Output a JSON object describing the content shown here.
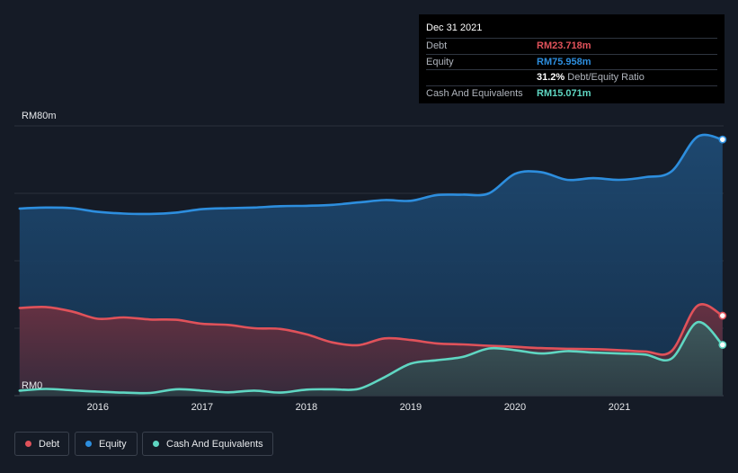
{
  "chart_data": {
    "type": "area",
    "y_top_label": "RM80m",
    "y_bottom_label": "RM0",
    "ylim": [
      0,
      80
    ],
    "xlim": [
      2015.2,
      2022.0
    ],
    "ticks": [
      {
        "label": "2016",
        "x": 2016.0
      },
      {
        "label": "2017",
        "x": 2017.0
      },
      {
        "label": "2018",
        "x": 2018.0
      },
      {
        "label": "2019",
        "x": 2019.0
      },
      {
        "label": "2020",
        "x": 2020.0
      },
      {
        "label": "2021",
        "x": 2021.0
      }
    ],
    "series": [
      {
        "name": "Equity",
        "color": "#2d8ede",
        "points": [
          [
            2015.25,
            55.5
          ],
          [
            2015.5,
            55.8
          ],
          [
            2015.75,
            55.6
          ],
          [
            2016.0,
            54.5
          ],
          [
            2016.25,
            54
          ],
          [
            2016.5,
            53.9
          ],
          [
            2016.75,
            54.3
          ],
          [
            2017.0,
            55.3
          ],
          [
            2017.25,
            55.6
          ],
          [
            2017.5,
            55.8
          ],
          [
            2017.75,
            56.2
          ],
          [
            2018.0,
            56.3
          ],
          [
            2018.25,
            56.6
          ],
          [
            2018.5,
            57.3
          ],
          [
            2018.75,
            58
          ],
          [
            2019.0,
            57.8
          ],
          [
            2019.25,
            59.5
          ],
          [
            2019.5,
            59.6
          ],
          [
            2019.75,
            60
          ],
          [
            2020.0,
            65.8
          ],
          [
            2020.25,
            66.3
          ],
          [
            2020.5,
            64
          ],
          [
            2020.75,
            64.5
          ],
          [
            2021.0,
            64
          ],
          [
            2021.25,
            64.8
          ],
          [
            2021.5,
            66.5
          ],
          [
            2021.75,
            76.8
          ],
          [
            2021.99,
            75.958
          ]
        ]
      },
      {
        "name": "Debt",
        "color": "#e0525a",
        "points": [
          [
            2015.25,
            26
          ],
          [
            2015.5,
            26.3
          ],
          [
            2015.75,
            25
          ],
          [
            2016.0,
            22.8
          ],
          [
            2016.25,
            23.2
          ],
          [
            2016.5,
            22.6
          ],
          [
            2016.75,
            22.5
          ],
          [
            2017.0,
            21.3
          ],
          [
            2017.25,
            21
          ],
          [
            2017.5,
            20
          ],
          [
            2017.75,
            19.8
          ],
          [
            2018.0,
            18.2
          ],
          [
            2018.25,
            15.8
          ],
          [
            2018.5,
            15
          ],
          [
            2018.75,
            17
          ],
          [
            2019.0,
            16.5
          ],
          [
            2019.25,
            15.5
          ],
          [
            2019.5,
            15.2
          ],
          [
            2019.75,
            14.8
          ],
          [
            2020.0,
            14.5
          ],
          [
            2020.25,
            14.1
          ],
          [
            2020.5,
            13.9
          ],
          [
            2020.75,
            13.8
          ],
          [
            2021.0,
            13.5
          ],
          [
            2021.25,
            13.1
          ],
          [
            2021.5,
            13.2
          ],
          [
            2021.75,
            26.7
          ],
          [
            2021.99,
            23.718
          ]
        ]
      },
      {
        "name": "Cash And Equivalents",
        "color": "#5fd6c2",
        "points": [
          [
            2015.25,
            1.5
          ],
          [
            2015.5,
            2
          ],
          [
            2015.75,
            1.6
          ],
          [
            2016.0,
            1.2
          ],
          [
            2016.25,
            0.9
          ],
          [
            2016.5,
            0.8
          ],
          [
            2016.75,
            1.9
          ],
          [
            2017.0,
            1.5
          ],
          [
            2017.25,
            1
          ],
          [
            2017.5,
            1.5
          ],
          [
            2017.75,
            0.9
          ],
          [
            2018.0,
            1.8
          ],
          [
            2018.25,
            1.9
          ],
          [
            2018.5,
            2
          ],
          [
            2018.75,
            5.5
          ],
          [
            2019.0,
            9.5
          ],
          [
            2019.25,
            10.5
          ],
          [
            2019.5,
            11.5
          ],
          [
            2019.75,
            14
          ],
          [
            2020.0,
            13.5
          ],
          [
            2020.25,
            12.5
          ],
          [
            2020.5,
            13.2
          ],
          [
            2020.75,
            12.8
          ],
          [
            2021.0,
            12.5
          ],
          [
            2021.25,
            12.2
          ],
          [
            2021.5,
            11
          ],
          [
            2021.75,
            21.8
          ],
          [
            2021.99,
            15.071
          ]
        ]
      }
    ]
  },
  "tooltip": {
    "date": "Dec 31 2021",
    "rows": [
      {
        "label": "Debt",
        "value": "RM23.718m",
        "color": "#e0525a"
      },
      {
        "label": "Equity",
        "value": "RM75.958m",
        "color": "#2d8ede"
      },
      {
        "label": "",
        "value": "31.2%",
        "extra": "Debt/Equity Ratio",
        "color": "#ffffff"
      },
      {
        "label": "Cash And Equivalents",
        "value": "RM15.071m",
        "color": "#5fd6c2"
      }
    ]
  },
  "legend": [
    {
      "label": "Debt",
      "color": "#e0525a"
    },
    {
      "label": "Equity",
      "color": "#2d8ede"
    },
    {
      "label": "Cash And Equivalents",
      "color": "#5fd6c2"
    }
  ]
}
